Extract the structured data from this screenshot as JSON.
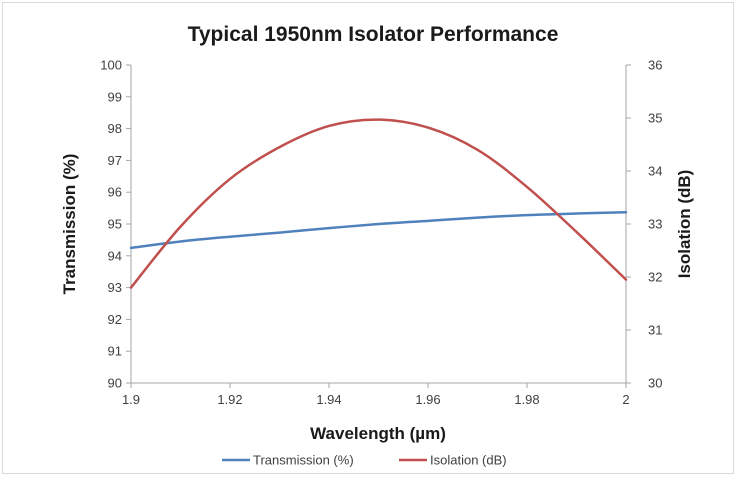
{
  "chart_data": {
    "type": "line",
    "title": "Typical 1950nm Isolator Performance",
    "xlabel": "Wavelength (µm)",
    "ylabel": "Transmission (%)",
    "y2label": "Isolation (dB)",
    "xlim": [
      1.9,
      2.0
    ],
    "ylim": [
      90,
      100
    ],
    "y2lim": [
      30,
      36
    ],
    "x_ticks": [
      "1.9",
      "1.92",
      "1.94",
      "1.96",
      "1.98",
      "2"
    ],
    "y_ticks": [
      "90",
      "91",
      "92",
      "93",
      "94",
      "95",
      "96",
      "97",
      "98",
      "99",
      "100"
    ],
    "y2_ticks": [
      "30",
      "31",
      "32",
      "33",
      "34",
      "35",
      "36"
    ],
    "grid": false,
    "legend_position": "bottom",
    "series": [
      {
        "name": "Transmission (%)",
        "axis": "left",
        "color": "#4f81bd",
        "x": [
          1.9,
          1.91,
          1.92,
          1.93,
          1.94,
          1.95,
          1.96,
          1.97,
          1.98,
          1.99,
          2.0
        ],
        "y": [
          94.25,
          94.45,
          94.6,
          94.73,
          94.87,
          95.0,
          95.1,
          95.2,
          95.28,
          95.33,
          95.37
        ]
      },
      {
        "name": "Isolation (dB)",
        "axis": "right",
        "color": "#c0504d",
        "x": [
          1.9,
          1.91,
          1.92,
          1.93,
          1.94,
          1.95,
          1.96,
          1.97,
          1.98,
          1.99,
          2.0
        ],
        "y": [
          31.8,
          32.95,
          33.85,
          34.45,
          34.85,
          34.97,
          34.82,
          34.4,
          33.7,
          32.85,
          31.95
        ]
      }
    ]
  }
}
